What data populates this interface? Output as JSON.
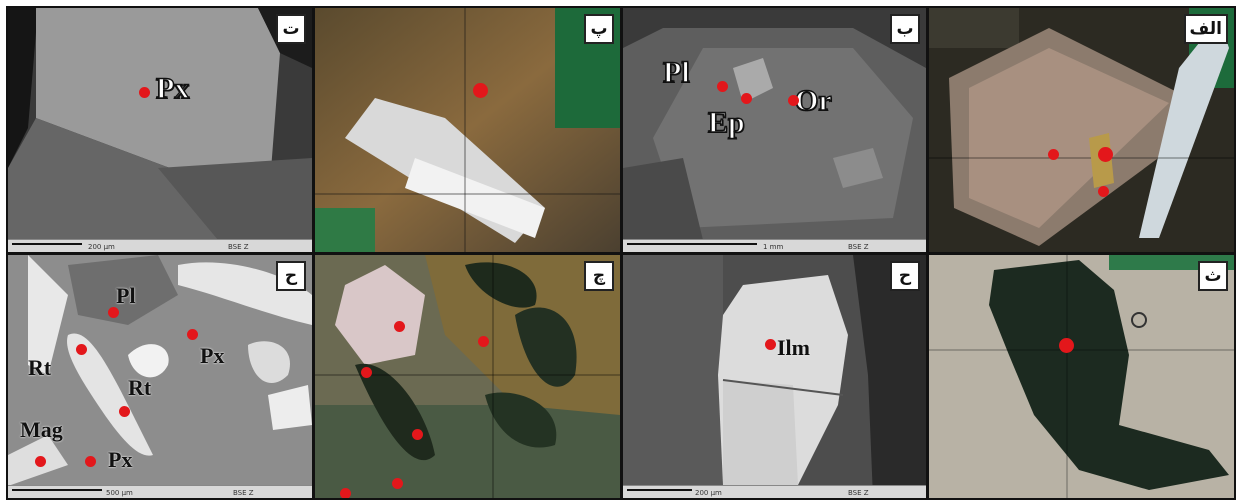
{
  "figure": {
    "panels": [
      {
        "id": "t",
        "tag": "ت",
        "labels": [
          "Px"
        ],
        "scale_text": "200 µm",
        "detector": "BSE Z"
      },
      {
        "id": "p",
        "tag": "پ",
        "labels": []
      },
      {
        "id": "b",
        "tag": "ب",
        "labels": [
          "Pl",
          "Ep",
          "Or"
        ],
        "scale_text": "1 mm",
        "detector": "BSE Z"
      },
      {
        "id": "alef",
        "tag": "الف",
        "labels": []
      },
      {
        "id": "h",
        "tag": "ح",
        "labels": [
          "Pl",
          "Px",
          "Rt",
          "Rt",
          "Mag",
          "Px"
        ],
        "scale_text": "500 µm",
        "detector": "BSE Z"
      },
      {
        "id": "ch",
        "tag": "چ",
        "labels": []
      },
      {
        "id": "j",
        "tag": "ح",
        "labels": [
          "Ilm"
        ],
        "scale_text": "200 µm",
        "detector": "BSE Z"
      },
      {
        "id": "th",
        "tag": "ث",
        "labels": []
      }
    ]
  }
}
